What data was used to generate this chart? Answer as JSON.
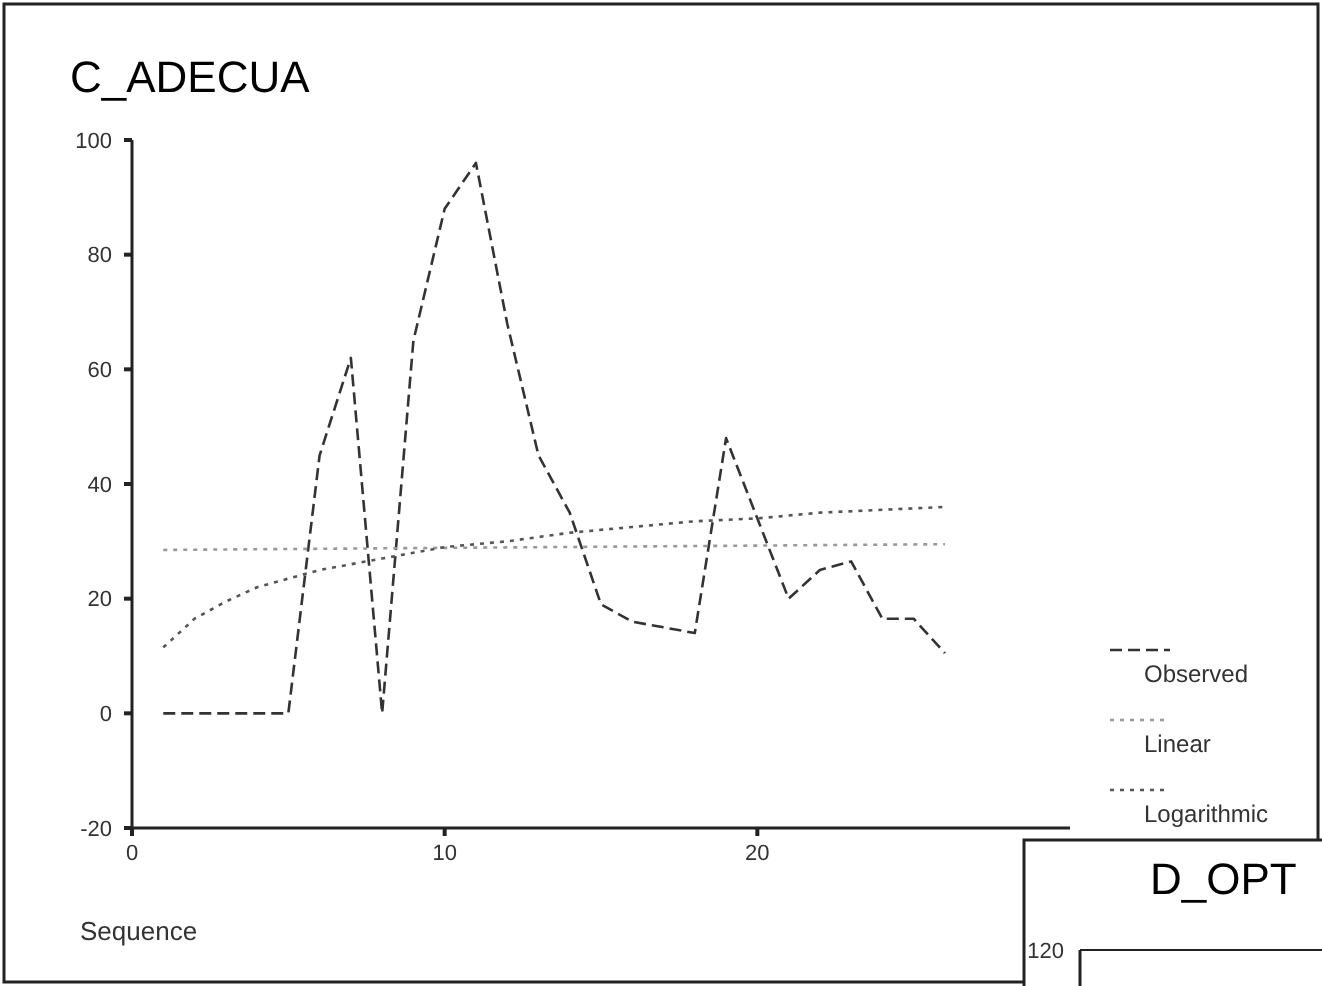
{
  "chart_data": [
    {
      "type": "line",
      "title": "C_ADECUA",
      "xlabel": "Sequence",
      "xlim": [
        0,
        30
      ],
      "xticks": [
        0,
        10,
        20
      ],
      "ylim": [
        -20,
        100
      ],
      "yticks": [
        -20,
        0,
        20,
        40,
        60,
        80,
        100
      ],
      "legend": "right",
      "grid": false,
      "series": [
        {
          "name": "Observed",
          "color": "#333333",
          "line_style": "dashed",
          "x": [
            1,
            2,
            3,
            4,
            5,
            6,
            7,
            8,
            9,
            10,
            11,
            12,
            13,
            14,
            15,
            16,
            17,
            18,
            19,
            20,
            21,
            22,
            23,
            24,
            25,
            26
          ],
          "values": [
            0,
            0,
            0,
            0,
            0,
            45,
            62,
            0,
            65,
            88,
            96,
            68,
            45,
            35,
            19,
            16,
            15,
            14,
            48,
            34,
            20,
            25,
            26.5,
            16.5,
            16.5,
            10.5
          ]
        },
        {
          "name": "Linear",
          "color": "#999999",
          "line_style": "dotted",
          "x": [
            1,
            26
          ],
          "values": [
            28.5,
            29.5
          ]
        },
        {
          "name": "Logarithmic",
          "color": "#555555",
          "line_style": "dotted",
          "x": [
            1,
            2,
            3,
            4,
            5,
            6,
            8,
            10,
            12,
            14,
            16,
            18,
            20,
            22,
            24,
            26
          ],
          "values": [
            11.5,
            16.5,
            19.5,
            22,
            23.5,
            25,
            27,
            29,
            30,
            31.5,
            32.5,
            33.5,
            34,
            35,
            35.5,
            36
          ]
        }
      ]
    },
    {
      "type": "other",
      "title": "D_OPT",
      "annotations": [
        "120"
      ]
    }
  ]
}
